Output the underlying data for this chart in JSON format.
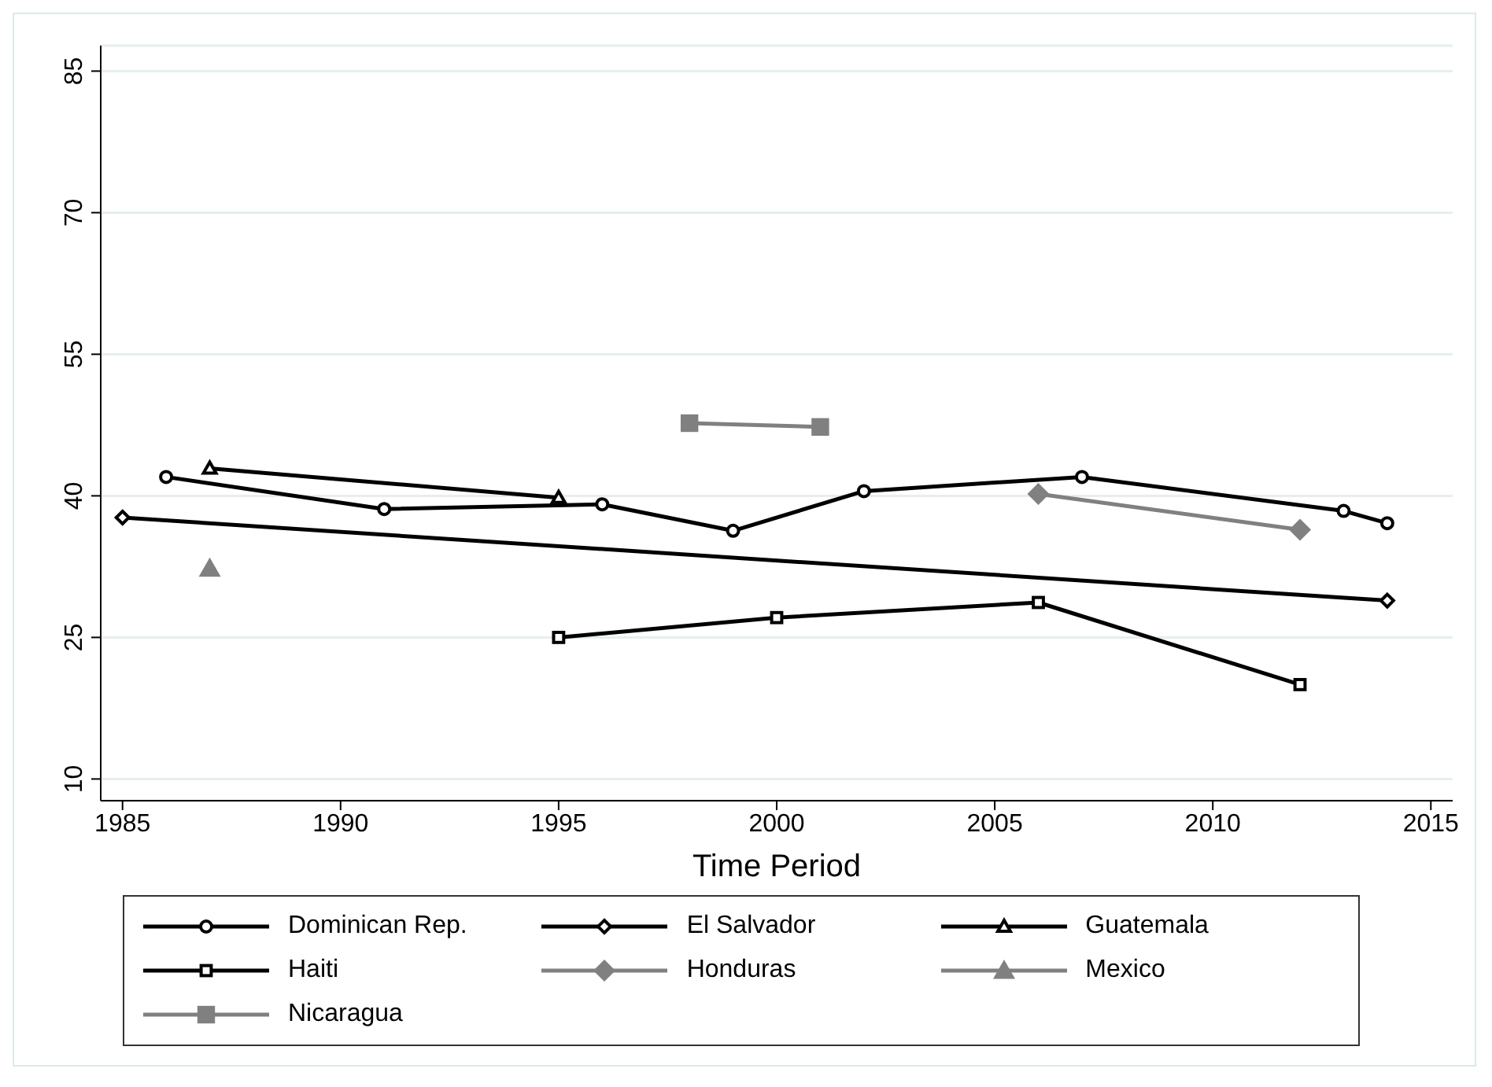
{
  "chart_data": {
    "type": "line",
    "xlabel": "Time Period",
    "xlim": [
      1984.5,
      2015.5
    ],
    "xticks": [
      1985,
      1990,
      1995,
      2000,
      2005,
      2010,
      2015
    ],
    "ylim": [
      7.7,
      87.7
    ],
    "yticks": [
      10,
      25,
      40,
      55,
      70,
      85
    ],
    "grid": "y",
    "legend": "bottom",
    "series": [
      {
        "name": "Dominican Rep.",
        "color": "#000000",
        "marker": "circle",
        "x": [
          1986,
          1991,
          1996,
          1999,
          2002,
          2007,
          2013,
          2014
        ],
        "values": [
          42.0,
          38.6,
          39.1,
          36.3,
          40.5,
          42.0,
          38.4,
          37.1
        ]
      },
      {
        "name": "El Salvador",
        "color": "#000000",
        "marker": "diamond",
        "x": [
          1985,
          2014
        ],
        "values": [
          37.7,
          28.9
        ]
      },
      {
        "name": "Guatemala",
        "color": "#000000",
        "marker": "triangle",
        "x": [
          1987,
          1995
        ],
        "values": [
          42.9,
          39.8
        ]
      },
      {
        "name": "Haiti",
        "color": "#000000",
        "marker": "square",
        "x": [
          1995,
          2000,
          2006,
          2012
        ],
        "values": [
          25.0,
          27.1,
          28.7,
          20.0
        ]
      },
      {
        "name": "Honduras",
        "color": "#808080",
        "marker": "diamond",
        "x": [
          2006,
          2012
        ],
        "values": [
          40.2,
          36.4
        ]
      },
      {
        "name": "Mexico",
        "color": "#808080",
        "marker": "triangle",
        "x": [
          1987
        ],
        "values": [
          32.3
        ]
      },
      {
        "name": "Nicaragua",
        "color": "#808080",
        "marker": "square",
        "x": [
          1998,
          2001
        ],
        "values": [
          47.7,
          47.3
        ]
      }
    ]
  }
}
